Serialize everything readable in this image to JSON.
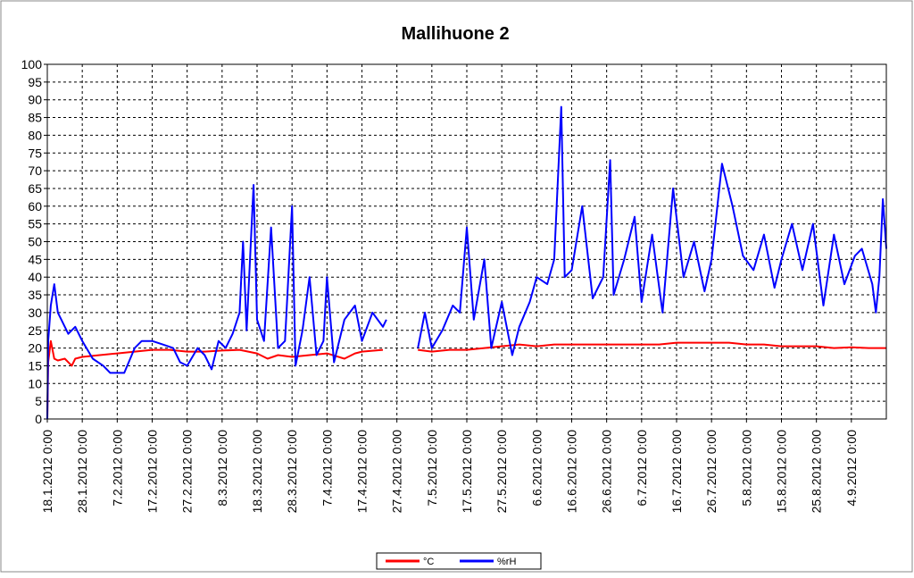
{
  "chart_data": {
    "type": "line",
    "title": "Mallihuone 2",
    "xlabel": "",
    "ylabel": "",
    "ylim": [
      0,
      100
    ],
    "yticks": [
      0,
      5,
      10,
      15,
      20,
      25,
      30,
      35,
      40,
      45,
      50,
      55,
      60,
      65,
      70,
      75,
      80,
      85,
      90,
      95,
      100
    ],
    "xlim": [
      "18.1.2012 0:00",
      "14.9.2012 0:00"
    ],
    "xticks": [
      "18.1.2012 0:00",
      "28.1.2012 0:00",
      "7.2.2012 0:00",
      "17.2.2012 0:00",
      "27.2.2012 0:00",
      "8.3.2012 0:00",
      "18.3.2012 0:00",
      "28.3.2012 0:00",
      "7.4.2012 0:00",
      "17.4.2012 0:00",
      "27.4.2012 0:00",
      "7.5.2012 0:00",
      "17.5.2012 0:00",
      "27.5.2012 0:00",
      "6.6.2012 0:00",
      "16.6.2012 0:00",
      "26.6.2012 0:00",
      "6.7.2012 0:00",
      "16.7.2012 0:00",
      "26.7.2012 0:00",
      "5.8.2012 0:00",
      "15.8.2012 0:00",
      "25.8.2012 0:00",
      "4.9.2012 0:00"
    ],
    "grid": true,
    "legend_position": "bottom",
    "series": [
      {
        "name": "°C",
        "color": "#ff0000",
        "points": [
          [
            "18.1.2012 0:00",
            0
          ],
          [
            "18.1.2012 6:00",
            16
          ],
          [
            "19.1.2012 0:00",
            22
          ],
          [
            "20.1.2012 0:00",
            17
          ],
          [
            "21.1.2012 0:00",
            16.5
          ],
          [
            "23.1.2012 0:00",
            17
          ],
          [
            "25.1.2012 0:00",
            15
          ],
          [
            "26.1.2012 0:00",
            17
          ],
          [
            "28.1.2012 0:00",
            17.5
          ],
          [
            "2.2.2012 0:00",
            18
          ],
          [
            "7.2.2012 0:00",
            18.5
          ],
          [
            "12.2.2012 0:00",
            19
          ],
          [
            "17.2.2012 0:00",
            19.5
          ],
          [
            "22.2.2012 0:00",
            19.5
          ],
          [
            "27.2.2012 0:00",
            19
          ],
          [
            "3.3.2012 0:00",
            19
          ],
          [
            "8.3.2012 0:00",
            19.3
          ],
          [
            "13.3.2012 0:00",
            19.5
          ],
          [
            "18.3.2012 0:00",
            18.5
          ],
          [
            "21.3.2012 0:00",
            17
          ],
          [
            "24.3.2012 0:00",
            18
          ],
          [
            "28.3.2012 0:00",
            17.5
          ],
          [
            "2.4.2012 0:00",
            18
          ],
          [
            "7.4.2012 0:00",
            18.5
          ],
          [
            "12.4.2012 0:00",
            17
          ],
          [
            "15.4.2012 0:00",
            18.5
          ],
          [
            "17.4.2012 0:00",
            19
          ],
          [
            "23.4.2012 0:00",
            19.5
          ],
          null,
          [
            "3.5.2012 0:00",
            19.5
          ],
          [
            "7.5.2012 0:00",
            19
          ],
          [
            "12.5.2012 0:00",
            19.5
          ],
          [
            "17.5.2012 0:00",
            19.5
          ],
          [
            "22.5.2012 0:00",
            20
          ],
          [
            "27.5.2012 0:00",
            20.5
          ],
          [
            "1.6.2012 0:00",
            21
          ],
          [
            "6.6.2012 0:00",
            20.5
          ],
          [
            "11.6.2012 0:00",
            21
          ],
          [
            "16.6.2012 0:00",
            21
          ],
          [
            "21.6.2012 0:00",
            21
          ],
          [
            "26.6.2012 0:00",
            21
          ],
          [
            "1.7.2012 0:00",
            21
          ],
          [
            "6.7.2012 0:00",
            21
          ],
          [
            "11.7.2012 0:00",
            21
          ],
          [
            "16.7.2012 0:00",
            21.5
          ],
          [
            "21.7.2012 0:00",
            21.5
          ],
          [
            "26.7.2012 0:00",
            21.5
          ],
          [
            "31.7.2012 0:00",
            21.5
          ],
          [
            "5.8.2012 0:00",
            21
          ],
          [
            "10.8.2012 0:00",
            21
          ],
          [
            "15.8.2012 0:00",
            20.5
          ],
          [
            "20.8.2012 0:00",
            20.5
          ],
          [
            "25.8.2012 0:00",
            20.5
          ],
          [
            "30.8.2012 0:00",
            20
          ],
          [
            "4.9.2012 0:00",
            20.2
          ],
          [
            "9.9.2012 0:00",
            20
          ],
          [
            "14.9.2012 0:00",
            20
          ]
        ]
      },
      {
        "name": "%rH",
        "color": "#0000ff",
        "points": [
          [
            "18.1.2012 0:00",
            0
          ],
          [
            "18.1.2012 6:00",
            22
          ],
          [
            "19.1.2012 0:00",
            32
          ],
          [
            "20.1.2012 0:00",
            38
          ],
          [
            "21.1.2012 0:00",
            30
          ],
          [
            "22.1.2012 0:00",
            28
          ],
          [
            "24.1.2012 0:00",
            24
          ],
          [
            "26.1.2012 0:00",
            26
          ],
          [
            "28.1.2012 0:00",
            22
          ],
          [
            "31.1.2012 0:00",
            17
          ],
          [
            "3.2.2012 0:00",
            15
          ],
          [
            "5.2.2012 0:00",
            13
          ],
          [
            "9.2.2012 0:00",
            13
          ],
          [
            "12.2.2012 0:00",
            20
          ],
          [
            "14.2.2012 0:00",
            22
          ],
          [
            "17.2.2012 0:00",
            22
          ],
          [
            "20.2.2012 0:00",
            21
          ],
          [
            "23.2.2012 0:00",
            20
          ],
          [
            "25.2.2012 0:00",
            16
          ],
          [
            "27.2.2012 0:00",
            15
          ],
          [
            "1.3.2012 0:00",
            20
          ],
          [
            "3.3.2012 0:00",
            18
          ],
          [
            "5.3.2012 0:00",
            14
          ],
          [
            "7.3.2012 0:00",
            22
          ],
          [
            "9.3.2012 0:00",
            20
          ],
          [
            "11.3.2012 0:00",
            24
          ],
          [
            "13.3.2012 0:00",
            30
          ],
          [
            "14.3.2012 0:00",
            50
          ],
          [
            "15.3.2012 0:00",
            25
          ],
          [
            "17.3.2012 0:00",
            66
          ],
          [
            "18.3.2012 0:00",
            28
          ],
          [
            "20.3.2012 0:00",
            22
          ],
          [
            "22.3.2012 0:00",
            54
          ],
          [
            "24.3.2012 0:00",
            20
          ],
          [
            "26.3.2012 0:00",
            22
          ],
          [
            "28.3.2012 0:00",
            60
          ],
          [
            "29.3.2012 0:00",
            15
          ],
          [
            "31.3.2012 0:00",
            25
          ],
          [
            "2.4.2012 0:00",
            40
          ],
          [
            "4.4.2012 0:00",
            18
          ],
          [
            "6.4.2012 0:00",
            22
          ],
          [
            "7.4.2012 0:00",
            40
          ],
          [
            "9.4.2012 0:00",
            16
          ],
          [
            "12.4.2012 0:00",
            28
          ],
          [
            "15.4.2012 0:00",
            32
          ],
          [
            "17.4.2012 0:00",
            22
          ],
          [
            "20.4.2012 0:00",
            30
          ],
          [
            "23.4.2012 0:00",
            26
          ],
          [
            "24.4.2012 0:00",
            28
          ],
          null,
          [
            "3.5.2012 0:00",
            20
          ],
          [
            "5.5.2012 0:00",
            30
          ],
          [
            "7.5.2012 0:00",
            20
          ],
          [
            "10.5.2012 0:00",
            25
          ],
          [
            "13.5.2012 0:00",
            32
          ],
          [
            "15.5.2012 0:00",
            30
          ],
          [
            "17.5.2012 0:00",
            54
          ],
          [
            "19.5.2012 0:00",
            28
          ],
          [
            "22.5.2012 0:00",
            45
          ],
          [
            "24.5.2012 0:00",
            20
          ],
          [
            "27.5.2012 0:00",
            33
          ],
          [
            "30.5.2012 0:00",
            18
          ],
          [
            "1.6.2012 0:00",
            26
          ],
          [
            "4.6.2012 0:00",
            33
          ],
          [
            "6.6.2012 0:00",
            40
          ],
          [
            "9.6.2012 0:00",
            38
          ],
          [
            "11.6.2012 0:00",
            45
          ],
          [
            "13.6.2012 0:00",
            88
          ],
          [
            "14.6.2012 0:00",
            40
          ],
          [
            "16.6.2012 0:00",
            42
          ],
          [
            "19.6.2012 0:00",
            60
          ],
          [
            "22.6.2012 0:00",
            34
          ],
          [
            "25.6.2012 0:00",
            40
          ],
          [
            "27.6.2012 0:00",
            73
          ],
          [
            "28.6.2012 0:00",
            35
          ],
          [
            "1.7.2012 0:00",
            45
          ],
          [
            "4.7.2012 0:00",
            57
          ],
          [
            "6.7.2012 0:00",
            33
          ],
          [
            "9.7.2012 0:00",
            52
          ],
          [
            "12.7.2012 0:00",
            30
          ],
          [
            "15.7.2012 0:00",
            65
          ],
          [
            "18.7.2012 0:00",
            40
          ],
          [
            "21.7.2012 0:00",
            50
          ],
          [
            "24.7.2012 0:00",
            36
          ],
          [
            "26.7.2012 0:00",
            45
          ],
          [
            "29.7.2012 0:00",
            72
          ],
          [
            "1.8.2012 0:00",
            60
          ],
          [
            "4.8.2012 0:00",
            46
          ],
          [
            "7.8.2012 0:00",
            42
          ],
          [
            "10.8.2012 0:00",
            52
          ],
          [
            "13.8.2012 0:00",
            37
          ],
          [
            "15.8.2012 0:00",
            45
          ],
          [
            "18.8.2012 0:00",
            55
          ],
          [
            "21.8.2012 0:00",
            42
          ],
          [
            "24.8.2012 0:00",
            55
          ],
          [
            "27.8.2012 0:00",
            32
          ],
          [
            "30.8.2012 0:00",
            52
          ],
          [
            "2.9.2012 0:00",
            38
          ],
          [
            "5.9.2012 0:00",
            46
          ],
          [
            "7.9.2012 0:00",
            48
          ],
          [
            "10.9.2012 0:00",
            38
          ],
          [
            "11.9.2012 0:00",
            30
          ],
          [
            "12.9.2012 0:00",
            40
          ],
          [
            "13.9.2012 0:00",
            62
          ],
          [
            "14.9.2012 0:00",
            48
          ]
        ]
      }
    ]
  }
}
